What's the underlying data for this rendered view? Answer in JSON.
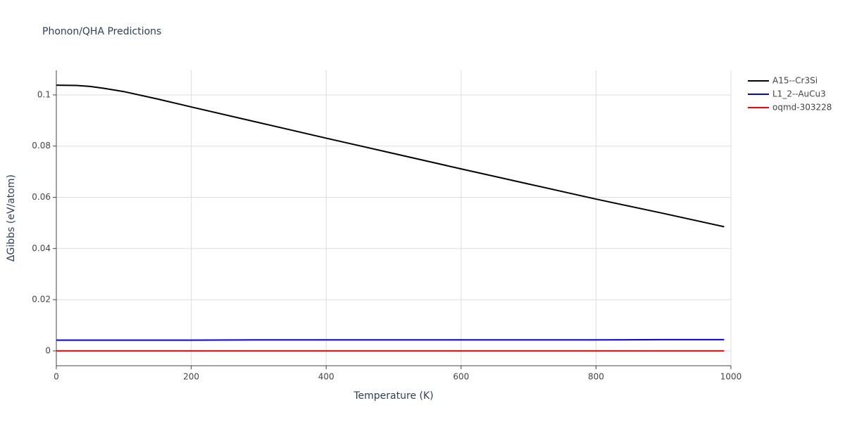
{
  "chart_data": {
    "type": "line",
    "title": "Phonon/QHA Predictions",
    "x_label": "Temperature (K)",
    "y_label": "ΔGibbs (eV/atom)",
    "x": [
      0,
      30,
      50,
      70,
      100,
      150,
      200,
      300,
      400,
      500,
      600,
      700,
      800,
      900,
      990
    ],
    "series": [
      {
        "name": "A15--Cr3Si",
        "color": "#000000",
        "values": [
          0.1038,
          0.1037,
          0.1033,
          0.1026,
          0.1013,
          0.0984,
          0.0953,
          0.0892,
          0.0831,
          0.0771,
          0.0711,
          0.0652,
          0.0593,
          0.0537,
          0.0485
        ]
      },
      {
        "name": "L1_2--AuCu3",
        "color": "#0000ff",
        "values": [
          0.0042,
          0.0042,
          0.0042,
          0.0042,
          0.0042,
          0.0042,
          0.0042,
          0.0043,
          0.0043,
          0.0043,
          0.0043,
          0.0043,
          0.0043,
          0.0044,
          0.0044
        ]
      },
      {
        "name": "oqmd-303228",
        "color": "#ff0000",
        "values": [
          0,
          0,
          0,
          0,
          0,
          0,
          0,
          0,
          0,
          0,
          0,
          0,
          0,
          0,
          0
        ]
      }
    ],
    "xlim": [
      0,
      1000
    ],
    "xticks": [
      0,
      200,
      400,
      600,
      800,
      1000
    ],
    "ylim": [
      -0.0058,
      0.1096
    ],
    "yticks": [
      0,
      0.02,
      0.04,
      0.06,
      0.08,
      0.1
    ],
    "grid": true,
    "legend": "right"
  }
}
